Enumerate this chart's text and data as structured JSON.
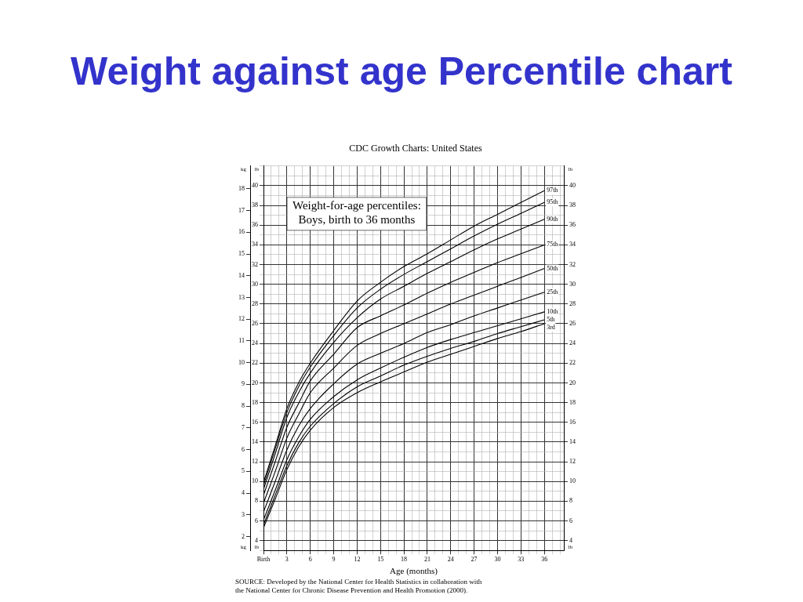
{
  "chart_data": {
    "type": "line",
    "title": "Weight against age Percentile chart",
    "subtitle": "CDC Growth Charts: United States",
    "xlabel": "Age (months)",
    "ylabel": "lb",
    "y2label": "lb",
    "y3label": "kg",
    "annotations": [
      "Weight-for-age percentiles:\nBoys, birth to 36 months",
      "SOURCE: Developed by the National Center for Health Statistics in collaboration with\nthe National Center for Chronic Disease Prevention and Health Promotion (2000)."
    ],
    "x": [
      0,
      1.5,
      3,
      4.5,
      6,
      9,
      12,
      15,
      18,
      21,
      24,
      27,
      30,
      33,
      36
    ],
    "series": [
      {
        "name": "97th",
        "color": "#000000",
        "values": [
          9.9,
          13.6,
          17.4,
          20.0,
          22.0,
          25.3,
          28.3,
          30.2,
          31.8,
          33.1,
          34.5,
          35.9,
          37.1,
          38.3,
          39.5
        ]
      },
      {
        "name": "95th",
        "color": "#000000",
        "values": [
          9.6,
          13.3,
          17.0,
          19.6,
          21.6,
          24.8,
          27.6,
          29.5,
          31.0,
          32.3,
          33.6,
          34.9,
          36.1,
          37.2,
          38.3
        ]
      },
      {
        "name": "90th",
        "color": "#000000",
        "values": [
          9.2,
          12.8,
          16.5,
          19.0,
          21.0,
          24.1,
          26.6,
          28.5,
          29.8,
          31.1,
          32.3,
          33.5,
          34.6,
          35.6,
          36.6
        ]
      },
      {
        "name": "75th",
        "color": "#000000",
        "values": [
          8.6,
          12.0,
          15.5,
          17.9,
          20.2,
          22.9,
          25.6,
          26.8,
          27.9,
          29.1,
          30.2,
          31.2,
          32.2,
          33.1,
          34.0
        ]
      },
      {
        "name": "50th",
        "color": "#000000",
        "values": [
          7.8,
          11.0,
          14.4,
          16.8,
          19.0,
          21.5,
          23.8,
          25.0,
          26.0,
          27.0,
          28.0,
          28.9,
          29.8,
          30.7,
          31.6
        ]
      },
      {
        "name": "25th",
        "color": "#000000",
        "values": [
          6.9,
          10.0,
          13.2,
          15.6,
          17.4,
          19.9,
          21.9,
          23.0,
          24.0,
          25.1,
          25.9,
          26.8,
          27.6,
          28.4,
          29.2
        ]
      },
      {
        "name": "10th",
        "color": "#000000",
        "values": [
          6.1,
          9.1,
          12.2,
          14.5,
          16.3,
          18.6,
          20.3,
          21.5,
          22.6,
          23.6,
          24.4,
          25.1,
          25.8,
          26.5,
          27.2
        ]
      },
      {
        "name": "5th",
        "color": "#000000",
        "values": [
          5.6,
          8.6,
          11.6,
          13.9,
          15.6,
          17.9,
          19.6,
          20.7,
          21.8,
          22.7,
          23.5,
          24.2,
          25.0,
          25.7,
          26.4
        ]
      },
      {
        "name": "3rd",
        "color": "#000000",
        "values": [
          5.3,
          8.2,
          11.2,
          13.5,
          15.2,
          17.5,
          19.0,
          20.1,
          21.1,
          22.1,
          22.9,
          23.7,
          24.5,
          25.2,
          26.0
        ]
      }
    ],
    "xlim": [
      0,
      38.5
    ],
    "xticks": [
      {
        "value": 0,
        "label": "Birth"
      },
      {
        "value": 1,
        "label": null
      },
      {
        "value": 2,
        "label": null
      },
      3,
      {
        "value": 4,
        "label": null
      },
      {
        "value": 5,
        "label": null
      },
      6,
      {
        "value": 7,
        "label": null
      },
      {
        "value": 8,
        "label": null
      },
      9,
      {
        "value": 10,
        "label": null
      },
      {
        "value": 11,
        "label": null
      },
      12,
      {
        "value": 13,
        "label": null
      },
      {
        "value": 14,
        "label": null
      },
      15,
      {
        "value": 16,
        "label": null
      },
      {
        "value": 17,
        "label": null
      },
      18,
      {
        "value": 19,
        "label": null
      },
      {
        "value": 20,
        "label": null
      },
      21,
      {
        "value": 22,
        "label": null
      },
      {
        "value": 23,
        "label": null
      },
      24,
      {
        "value": 25,
        "label": null
      },
      {
        "value": 26,
        "label": null
      },
      27,
      {
        "value": 28,
        "label": null
      },
      {
        "value": 29,
        "label": null
      },
      30,
      {
        "value": 31,
        "label": null
      },
      {
        "value": 32,
        "label": null
      },
      33,
      {
        "value": 34,
        "label": null
      },
      {
        "value": 35,
        "label": null
      },
      36,
      {
        "value": 37,
        "label": null
      },
      {
        "value": 38,
        "label": null
      }
    ],
    "ylim": [
      3,
      42
    ],
    "yticks": [
      {
        "value": 3,
        "label": null
      },
      4,
      {
        "value": 5,
        "label": null
      },
      6,
      {
        "value": 7,
        "label": null
      },
      8,
      {
        "value": 9,
        "label": null
      },
      10,
      {
        "value": 11,
        "label": null
      },
      12,
      {
        "value": 13,
        "label": null
      },
      14,
      {
        "value": 15,
        "label": null
      },
      16,
      {
        "value": 17,
        "label": null
      },
      18,
      {
        "value": 19,
        "label": null
      },
      20,
      {
        "value": 21,
        "label": null
      },
      22,
      {
        "value": 23,
        "label": null
      },
      24,
      {
        "value": 25,
        "label": null
      },
      26,
      {
        "value": 27,
        "label": null
      },
      28,
      {
        "value": 29,
        "label": null
      },
      30,
      {
        "value": 31,
        "label": null
      },
      32,
      {
        "value": 33,
        "label": null
      },
      34,
      {
        "value": 35,
        "label": null
      },
      36,
      {
        "value": 37,
        "label": null
      },
      38,
      {
        "value": 39,
        "label": null
      },
      40,
      {
        "value": 41,
        "label": null
      },
      {
        "value": 42,
        "label": null
      }
    ],
    "y2lim": [
      3,
      42
    ],
    "y2ticks": [
      4,
      6,
      8,
      10,
      12,
      14,
      16,
      18,
      20,
      22,
      24,
      26,
      28,
      30,
      32,
      34,
      36,
      38,
      40
    ],
    "y3lim": [
      1.36,
      19.05
    ],
    "y3ticks": [
      2,
      3,
      4,
      5,
      6,
      7,
      8,
      9,
      10,
      11,
      12,
      13,
      14,
      15,
      16,
      17,
      18
    ],
    "grid": true,
    "legend": false,
    "marker": "none"
  }
}
